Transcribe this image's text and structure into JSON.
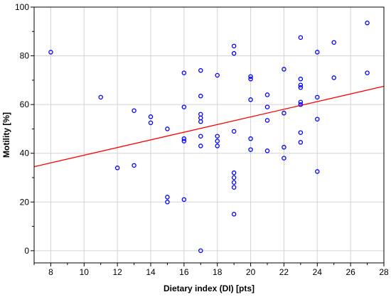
{
  "chart_data": {
    "type": "scatter",
    "title": "",
    "xlabel": "Dietary index (DI) [pts]",
    "ylabel": "Motility [%]",
    "xlim": [
      7,
      28
    ],
    "ylim": [
      -5,
      100
    ],
    "xticks": [
      8,
      10,
      12,
      14,
      16,
      18,
      20,
      22,
      24,
      26,
      28
    ],
    "yticks": [
      0,
      20,
      40,
      60,
      80,
      100
    ],
    "grid": true,
    "legend": "none",
    "colors": {
      "points": "#0000ff",
      "fit_line": "#ff0000",
      "grid": "#d3d3d3"
    },
    "series": [
      {
        "x": [
          8,
          11,
          12,
          13,
          13,
          14,
          14,
          15,
          15,
          15,
          16,
          16,
          16,
          16,
          16,
          17,
          17,
          17,
          17,
          17,
          17,
          17,
          17,
          18,
          18,
          18,
          18,
          19,
          19,
          19,
          19,
          19,
          19,
          19,
          19,
          20,
          20,
          20,
          20,
          20,
          21,
          21,
          21,
          21,
          22,
          22,
          22,
          22,
          23,
          23,
          23,
          23,
          23,
          23,
          23,
          23,
          24,
          24,
          24,
          24,
          25,
          25,
          27,
          27
        ],
        "y": [
          81.5,
          63,
          34,
          57.5,
          35,
          55,
          52.5,
          50,
          22,
          20,
          73,
          59,
          46,
          45,
          21,
          74,
          63.5,
          56,
          54.5,
          53,
          47,
          43,
          0,
          72,
          47,
          45,
          43,
          84,
          81,
          49,
          32,
          30,
          28,
          26,
          15,
          71.5,
          70.5,
          62,
          46,
          41.5,
          64,
          59,
          53.5,
          41,
          74.5,
          56.5,
          42.5,
          38,
          87.5,
          70.5,
          68,
          67,
          61,
          60,
          48.5,
          44.5,
          81.5,
          63,
          54,
          32.5,
          85.5,
          71,
          93.5,
          73
        ]
      }
    ],
    "fit_line": {
      "x": [
        7,
        28
      ],
      "y": [
        34.5,
        67.5
      ]
    }
  }
}
